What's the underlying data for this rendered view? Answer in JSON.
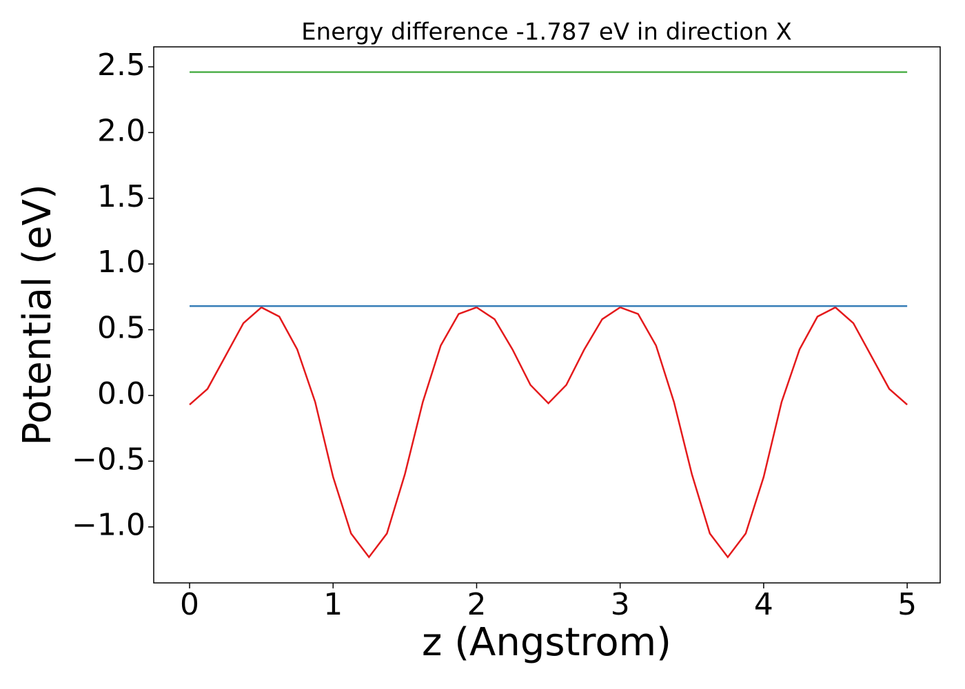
{
  "chart_data": {
    "type": "line",
    "title": "Energy difference -1.787 eV in direction X",
    "xlabel": "z (Angstrom)",
    "ylabel": "Potential (eV)",
    "series": [
      {
        "color": "#e41a1c",
        "x": [
          0,
          0.125,
          0.25,
          0.375,
          0.5,
          0.625,
          0.75,
          0.875,
          1.0,
          1.125,
          1.25,
          1.375,
          1.5,
          1.625,
          1.75,
          1.875,
          2.0,
          2.125,
          2.25,
          2.375,
          2.5,
          2.625,
          2.75,
          2.875,
          3.0,
          3.125,
          3.25,
          3.375,
          3.5,
          3.625,
          3.75,
          3.875,
          4.0,
          4.125,
          4.25,
          4.375,
          4.5,
          4.625,
          4.75,
          4.875,
          5.0
        ],
        "values": [
          -0.07,
          0.05,
          0.3,
          0.55,
          0.67,
          0.6,
          0.35,
          -0.05,
          -0.62,
          -1.05,
          -1.23,
          -1.05,
          -0.6,
          -0.05,
          0.38,
          0.62,
          0.67,
          0.58,
          0.35,
          0.08,
          -0.06,
          0.08,
          0.35,
          0.58,
          0.67,
          0.62,
          0.38,
          -0.05,
          -0.6,
          -1.05,
          -1.23,
          -1.05,
          -0.62,
          -0.05,
          0.35,
          0.6,
          0.67,
          0.55,
          0.3,
          0.05,
          -0.07
        ]
      },
      {
        "color": "#377eb8",
        "x": [
          0,
          5.0
        ],
        "values": [
          0.68,
          0.68
        ]
      },
      {
        "color": "#4daf4a",
        "x": [
          0,
          5.0
        ],
        "values": [
          2.46,
          2.46
        ]
      }
    ],
    "xlim": [
      -0.25,
      5.23
    ],
    "ylim": [
      -1.426,
      2.652
    ],
    "xticks": [
      0,
      1,
      2,
      3,
      4,
      5
    ],
    "yticks": [
      {
        "value": -1,
        "label": "−1.0"
      },
      {
        "value": -0.5,
        "label": "−0.5"
      },
      {
        "value": 0,
        "label": "0.0"
      },
      0.5,
      {
        "value": 1,
        "label": "1.0"
      },
      1.5,
      {
        "value": 2,
        "label": "2.0"
      },
      2.5
    ]
  }
}
